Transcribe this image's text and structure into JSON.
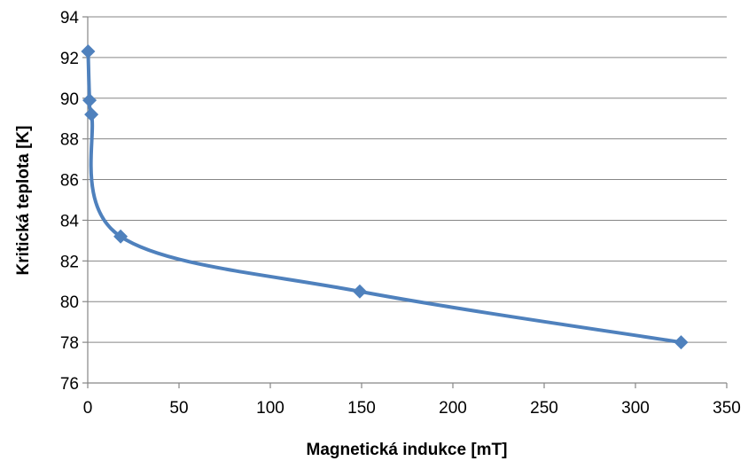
{
  "chart_data": {
    "type": "scatter",
    "title": "",
    "xlabel": "Magnetická indukce [mT]",
    "ylabel": "Kritická teplota [K]",
    "xlim": [
      0,
      350
    ],
    "ylim": [
      76,
      94
    ],
    "x_ticks": [
      "0",
      "50",
      "100",
      "150",
      "200",
      "250",
      "300",
      "350"
    ],
    "y_ticks": [
      "76",
      "78",
      "80",
      "82",
      "84",
      "86",
      "88",
      "90",
      "92",
      "94"
    ],
    "grid": "horizontal",
    "legend": "none",
    "line_style": "smooth",
    "series": [
      {
        "color": "#4f81bd",
        "marker": "diamond",
        "points": [
          {
            "x": 0.2,
            "y": 92.3
          },
          {
            "x": 1.0,
            "y": 89.9
          },
          {
            "x": 2.0,
            "y": 89.2
          },
          {
            "x": 18,
            "y": 83.2
          },
          {
            "x": 149,
            "y": 80.5
          },
          {
            "x": 325,
            "y": 78.0
          }
        ]
      }
    ]
  }
}
